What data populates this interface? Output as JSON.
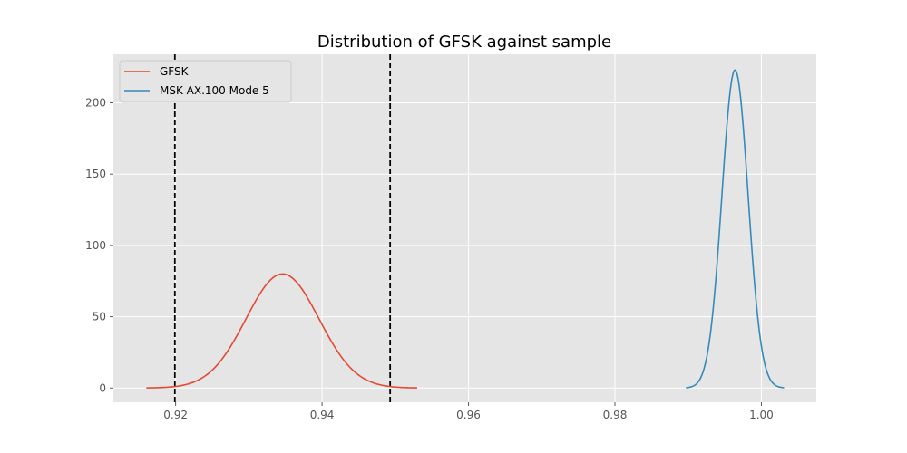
{
  "chart_data": {
    "type": "line",
    "title": "Distribution of GFSK against sample",
    "xlabel": "",
    "ylabel": "",
    "xlim": [
      0.9115,
      1.0075
    ],
    "ylim": [
      -10,
      234
    ],
    "xticks": [
      0.92,
      0.94,
      0.96,
      0.98,
      1.0
    ],
    "xtick_labels": [
      "0.92",
      "0.94",
      "0.96",
      "0.98",
      "1.00"
    ],
    "yticks": [
      0,
      50,
      100,
      150,
      200
    ],
    "ytick_labels": [
      "0",
      "50",
      "100",
      "150",
      "200"
    ],
    "grid": true,
    "style": "ggplot",
    "legend_position": "upper-left",
    "series": [
      {
        "name": "GFSK",
        "color": "#e24a33",
        "distribution": "normal",
        "mean": 0.9346,
        "peak": 80.0,
        "x_range": [
          0.916,
          0.953
        ]
      },
      {
        "name": "MSK AX.100 Mode 5",
        "color": "#348abd",
        "distribution": "normal",
        "mean": 0.9964,
        "peak": 223.0,
        "x_range": [
          0.9897,
          1.0031
        ]
      }
    ],
    "vlines": [
      {
        "x": 0.9199,
        "color": "#000000",
        "style": "dashed"
      },
      {
        "x": 0.9493,
        "color": "#000000",
        "style": "dashed"
      }
    ]
  }
}
